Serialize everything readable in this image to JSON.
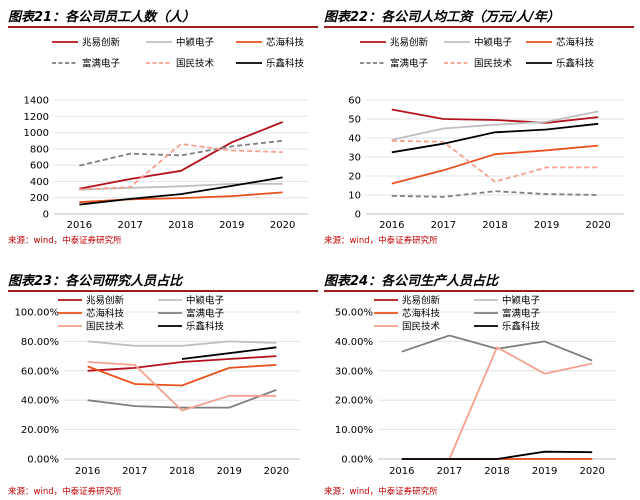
{
  "colors": {
    "zhaoyi": "#b5121b",
    "zhongying": "#bfbfbf",
    "xinhai": "#e8501c",
    "fuman": "#7f7f7f",
    "guomin": "#f4a18e",
    "lexin": "#000000",
    "title_rule": "#9e1b1b",
    "source": "#c00000"
  },
  "panels": [
    {
      "title": "图表21：各公司员工人数（人）",
      "source": "来源：wind，中泰证券研究所"
    },
    {
      "title": "图表22：各公司人均工资（万元/人/年）",
      "source": "来源：wind，中泰证券研究所"
    },
    {
      "title": "图表23：各公司研究人员占比",
      "source": "来源：wind，中泰证券研究所"
    },
    {
      "title": "图表24：各公司生产人员占比",
      "source": "来源：wind，中泰证券研究所"
    }
  ],
  "chart_data": [
    {
      "type": "line",
      "title": "图表21：各公司员工人数（人）",
      "x": [
        "2016",
        "2017",
        "2018",
        "2019",
        "2020"
      ],
      "ylim": [
        0,
        1400
      ],
      "yticks": [
        "0",
        "200",
        "400",
        "600",
        "800",
        "1000",
        "1200",
        "1400"
      ],
      "legend_position": "top",
      "series": [
        {
          "name": "兆易创新",
          "color": "#b5121b",
          "dash": "solid",
          "values": [
            310,
            430,
            530,
            880,
            1130
          ]
        },
        {
          "name": "中颖电子",
          "color": "#bfbfbf",
          "dash": "solid",
          "values": [
            300,
            320,
            340,
            370,
            370
          ]
        },
        {
          "name": "芯海科技",
          "color": "#e8501c",
          "dash": "solid",
          "values": [
            145,
            180,
            195,
            220,
            265
          ]
        },
        {
          "name": "富满电子",
          "color": "#7f7f7f",
          "dash": "dashed",
          "values": [
            595,
            740,
            720,
            830,
            900
          ]
        },
        {
          "name": "国民技术",
          "color": "#f4a18e",
          "dash": "dashed",
          "values": [
            300,
            330,
            860,
            780,
            760
          ]
        },
        {
          "name": "乐鑫科技",
          "color": "#000000",
          "dash": "solid",
          "values": [
            115,
            185,
            245,
            345,
            450
          ]
        }
      ]
    },
    {
      "type": "line",
      "title": "图表22：各公司人均工资（万元/人/年）",
      "x": [
        "2016",
        "2017",
        "2018",
        "2019",
        "2020"
      ],
      "ylim": [
        0,
        60
      ],
      "yticks": [
        "0",
        "10",
        "20",
        "30",
        "40",
        "50",
        "60"
      ],
      "legend_position": "top",
      "series": [
        {
          "name": "兆易创新",
          "color": "#b5121b",
          "dash": "solid",
          "values": [
            55,
            50,
            49.5,
            48,
            51
          ]
        },
        {
          "name": "中颖电子",
          "color": "#bfbfbf",
          "dash": "solid",
          "values": [
            39,
            45,
            47,
            48.5,
            54
          ]
        },
        {
          "name": "芯海科技",
          "color": "#e8501c",
          "dash": "solid",
          "values": [
            16,
            23,
            31.5,
            33.5,
            36
          ]
        },
        {
          "name": "富满电子",
          "color": "#7f7f7f",
          "dash": "dashed",
          "values": [
            9.5,
            9,
            12,
            10.5,
            10
          ]
        },
        {
          "name": "国民技术",
          "color": "#f4a18e",
          "dash": "dashed",
          "values": [
            38.5,
            38,
            17,
            24.5,
            24.5
          ]
        },
        {
          "name": "乐鑫科技",
          "color": "#000000",
          "dash": "solid",
          "values": [
            32.5,
            37,
            43,
            44.5,
            47.5
          ]
        }
      ]
    },
    {
      "type": "line",
      "title": "图表23：各公司研究人员占比",
      "x": [
        "2016",
        "2017",
        "2018",
        "2019",
        "2020"
      ],
      "ylim": [
        0,
        100
      ],
      "yticks": [
        "0.00%",
        "20.00%",
        "40.00%",
        "60.00%",
        "80.00%",
        "100.00%"
      ],
      "legend_position": "top",
      "series": [
        {
          "name": "兆易创新",
          "color": "#b5121b",
          "dash": "solid",
          "values": [
            60,
            62,
            66,
            68,
            70
          ]
        },
        {
          "name": "中颖电子",
          "color": "#bfbfbf",
          "dash": "solid",
          "values": [
            80,
            77,
            77,
            80,
            79
          ]
        },
        {
          "name": "芯海科技",
          "color": "#e8501c",
          "dash": "solid",
          "values": [
            63,
            51,
            50,
            62,
            64
          ]
        },
        {
          "name": "富满电子",
          "color": "#7f7f7f",
          "dash": "solid",
          "values": [
            40,
            36,
            35,
            35,
            47
          ]
        },
        {
          "name": "国民技术",
          "color": "#f4a18e",
          "dash": "solid",
          "values": [
            66,
            64,
            33,
            43,
            43
          ]
        },
        {
          "name": "乐鑫科技",
          "color": "#000000",
          "dash": "solid",
          "values": [
            null,
            null,
            68,
            72,
            76
          ]
        }
      ]
    },
    {
      "type": "line",
      "title": "图表24：各公司生产人员占比",
      "x": [
        "2016",
        "2017",
        "2018",
        "2019",
        "2020"
      ],
      "ylim": [
        0,
        50
      ],
      "yticks": [
        "0.00%",
        "10.00%",
        "20.00%",
        "30.00%",
        "40.00%",
        "50.00%"
      ],
      "legend_position": "top",
      "series": [
        {
          "name": "兆易创新",
          "color": "#b5121b",
          "dash": "solid",
          "values": [
            0,
            0,
            0,
            0,
            0
          ]
        },
        {
          "name": "中颖电子",
          "color": "#bfbfbf",
          "dash": "solid",
          "values": [
            0,
            0,
            0,
            0,
            0
          ]
        },
        {
          "name": "芯海科技",
          "color": "#e8501c",
          "dash": "solid",
          "values": [
            0,
            0,
            0,
            0,
            0
          ]
        },
        {
          "name": "富满电子",
          "color": "#7f7f7f",
          "dash": "solid",
          "values": [
            36.5,
            42,
            37.5,
            40,
            33.5
          ]
        },
        {
          "name": "国民技术",
          "color": "#f4a18e",
          "dash": "solid",
          "values": [
            0,
            0,
            38,
            29,
            32.5
          ]
        },
        {
          "name": "乐鑫科技",
          "color": "#000000",
          "dash": "solid",
          "values": [
            0,
            0,
            0,
            2.5,
            2.3
          ]
        }
      ]
    }
  ]
}
